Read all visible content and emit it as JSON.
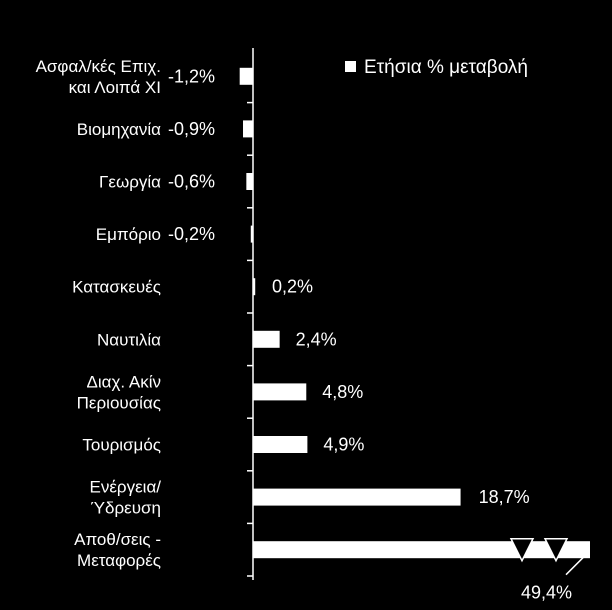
{
  "chart_data": {
    "type": "bar",
    "orientation": "horizontal",
    "categories": [
      [
        "Ασφαλ/κές Επιχ.",
        "και Λοιπά XI"
      ],
      [
        "Βιομηχανία"
      ],
      [
        "Γεωργία"
      ],
      [
        "Εμπόριο"
      ],
      [
        "Κατασκευές"
      ],
      [
        "Ναυτιλία"
      ],
      [
        "Διαχ. Ακίν",
        "Περιουσίας"
      ],
      [
        "Τουρισμός"
      ],
      [
        "Ενέργεια/",
        "Ύδρευση"
      ],
      [
        "Αποθ/σεις -",
        "Μεταφορές"
      ]
    ],
    "series": [
      {
        "name": "Ετήσια % μεταβολή",
        "values": [
          -1.2,
          -0.9,
          -0.6,
          -0.2,
          0.2,
          2.4,
          4.8,
          4.9,
          18.7,
          49.4
        ],
        "labels": [
          "-1,2%",
          "-0,9%",
          "-0,6%",
          "-0,2%",
          "0,2%",
          "2,4%",
          "4,8%",
          "4,9%",
          "18,7%",
          "49,4%"
        ]
      }
    ],
    "axis_break": {
      "on_category": "Αποθ/σεις -\nΜεταφορές"
    },
    "legend": {
      "position": "top-right"
    },
    "grid": false,
    "title": "",
    "xlabel": "",
    "ylabel": ""
  },
  "colors": {
    "background": "#000000",
    "bar": "#ffffff",
    "text": "#ffffff",
    "axis": "#ffffff",
    "break_marker": "#000000"
  }
}
